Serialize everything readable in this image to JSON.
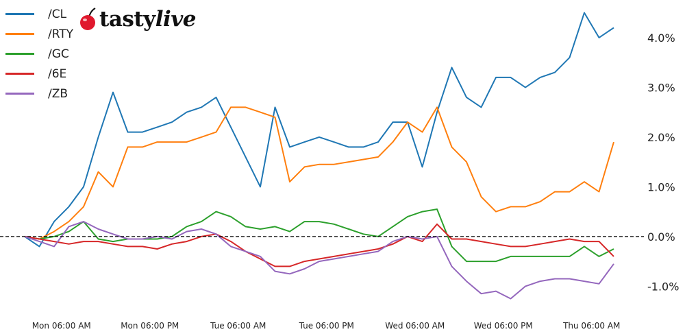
{
  "logo": {
    "brand_part1": "tasty",
    "brand_part2": "live"
  },
  "chart_data": {
    "type": "line",
    "title": "",
    "xlabel": "",
    "ylabel": "",
    "y_axis_side": "right",
    "y_unit": "%",
    "ylim": [
      -1.45,
      4.55
    ],
    "yticks": [
      -1.0,
      0.0,
      1.0,
      2.0,
      3.0,
      4.0
    ],
    "ytick_labels": [
      "-1.0%",
      "0.0%",
      "1.0%",
      "2.0%",
      "3.0%",
      "4.0%"
    ],
    "xticks": [
      "Mon 06:00",
      "Mon 18:00",
      "Tue 06:00",
      "Tue 18:00",
      "Wed 06:00",
      "Wed 18:00",
      "Thu 06:00"
    ],
    "xtick_labels": [
      "Mon 06:00 AM",
      "Mon 06:00 PM",
      "Tue 06:00 AM",
      "Tue 06:00 PM",
      "Wed 06:00 AM",
      "Wed 06:00 PM",
      "Thu 06:00 AM"
    ],
    "xlim": [
      "Mon 01:00",
      "Thu 09:00"
    ],
    "reference_line": {
      "y": 0,
      "style": "dashed",
      "color": "#000000"
    },
    "grid": false,
    "legend_position": "top-left",
    "x": [
      "Mon 01:00",
      "Mon 03:00",
      "Mon 05:00",
      "Mon 07:00",
      "Mon 09:00",
      "Mon 11:00",
      "Mon 13:00",
      "Mon 15:00",
      "Mon 17:00",
      "Mon 19:00",
      "Mon 21:00",
      "Mon 23:00",
      "Tue 01:00",
      "Tue 03:00",
      "Tue 05:00",
      "Tue 07:00",
      "Tue 09:00",
      "Tue 11:00",
      "Tue 13:00",
      "Tue 15:00",
      "Tue 17:00",
      "Tue 19:00",
      "Tue 21:00",
      "Tue 23:00",
      "Wed 01:00",
      "Wed 03:00",
      "Wed 05:00",
      "Wed 07:00",
      "Wed 09:00",
      "Wed 11:00",
      "Wed 13:00",
      "Wed 15:00",
      "Wed 17:00",
      "Wed 19:00",
      "Wed 21:00",
      "Wed 23:00",
      "Thu 01:00",
      "Thu 03:00",
      "Thu 05:00",
      "Thu 07:00",
      "Thu 09:00"
    ],
    "series": [
      {
        "name": "/CL",
        "color": "#1f77b4",
        "values": [
          0,
          -0.2,
          0.3,
          0.6,
          1.0,
          2.0,
          2.9,
          2.1,
          2.1,
          2.2,
          2.3,
          2.5,
          2.6,
          2.8,
          2.2,
          1.6,
          1.0,
          2.6,
          1.8,
          1.9,
          2.0,
          1.9,
          1.8,
          1.8,
          1.9,
          2.3,
          2.3,
          1.4,
          2.5,
          3.4,
          2.8,
          2.6,
          3.2,
          3.2,
          3.0,
          3.2,
          3.3,
          3.6,
          4.5,
          4.0,
          4.2
        ]
      },
      {
        "name": "/RTY",
        "color": "#ff7f0e",
        "values": [
          0,
          -0.05,
          0.1,
          0.3,
          0.6,
          1.3,
          1.0,
          1.8,
          1.8,
          1.9,
          1.9,
          1.9,
          2.0,
          2.1,
          2.6,
          2.6,
          2.5,
          2.4,
          1.1,
          1.4,
          1.45,
          1.45,
          1.5,
          1.55,
          1.6,
          1.9,
          2.3,
          2.1,
          2.6,
          1.8,
          1.5,
          0.8,
          0.5,
          0.6,
          0.6,
          0.7,
          0.9,
          0.9,
          1.1,
          0.9,
          1.9
        ]
      },
      {
        "name": "/GC",
        "color": "#2ca02c",
        "values": [
          0,
          -0.05,
          0,
          0.1,
          0.3,
          -0.05,
          -0.1,
          -0.05,
          -0.05,
          -0.05,
          0,
          0.2,
          0.3,
          0.5,
          0.4,
          0.2,
          0.15,
          0.2,
          0.1,
          0.3,
          0.3,
          0.25,
          0.15,
          0.05,
          0,
          0.2,
          0.4,
          0.5,
          0.55,
          -0.2,
          -0.5,
          -0.5,
          -0.5,
          -0.4,
          -0.4,
          -0.4,
          -0.4,
          -0.4,
          -0.2,
          -0.4,
          -0.25
        ]
      },
      {
        "name": "/6E",
        "color": "#d62728",
        "values": [
          0,
          -0.05,
          -0.1,
          -0.15,
          -0.1,
          -0.1,
          -0.15,
          -0.2,
          -0.2,
          -0.25,
          -0.15,
          -0.1,
          0,
          0.05,
          -0.1,
          -0.3,
          -0.45,
          -0.6,
          -0.6,
          -0.5,
          -0.45,
          -0.4,
          -0.35,
          -0.3,
          -0.25,
          -0.15,
          0,
          -0.1,
          0.25,
          -0.05,
          -0.05,
          -0.1,
          -0.15,
          -0.2,
          -0.2,
          -0.15,
          -0.1,
          -0.05,
          -0.1,
          -0.1,
          -0.4
        ]
      },
      {
        "name": "/ZB",
        "color": "#9467bd",
        "values": [
          0,
          -0.1,
          -0.2,
          0.2,
          0.3,
          0.15,
          0.05,
          -0.05,
          -0.05,
          0,
          -0.05,
          0.1,
          0.15,
          0.05,
          -0.2,
          -0.3,
          -0.4,
          -0.7,
          -0.75,
          -0.65,
          -0.5,
          -0.45,
          -0.4,
          -0.35,
          -0.3,
          -0.1,
          0,
          -0.05,
          0,
          -0.6,
          -0.9,
          -1.15,
          -1.1,
          -1.25,
          -1.0,
          -0.9,
          -0.85,
          -0.85,
          -0.9,
          -0.95,
          -0.55
        ]
      }
    ]
  }
}
